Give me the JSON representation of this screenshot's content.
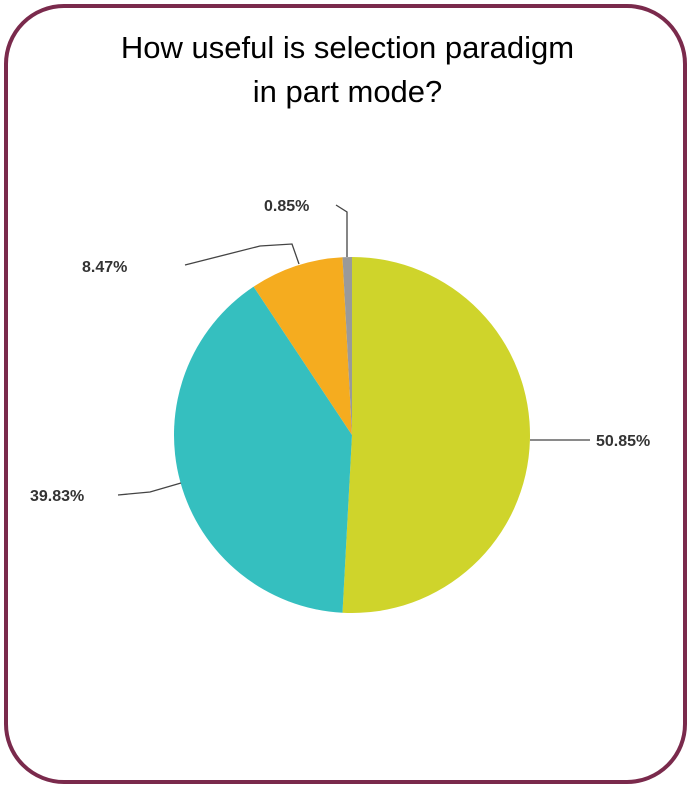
{
  "chart_data": {
    "type": "pie",
    "title": [
      "How useful is selection paradigm",
      "in part mode?"
    ],
    "slices": [
      {
        "value": 50.85,
        "label": "50.85%",
        "color": "#cfd42b"
      },
      {
        "value": 39.83,
        "label": "39.83%",
        "color": "#35bfbf"
      },
      {
        "value": 8.47,
        "label": "8.47%",
        "color": "#f5ac1f"
      },
      {
        "value": 0.85,
        "label": "0.85%",
        "color": "#9a9a9a"
      }
    ]
  }
}
